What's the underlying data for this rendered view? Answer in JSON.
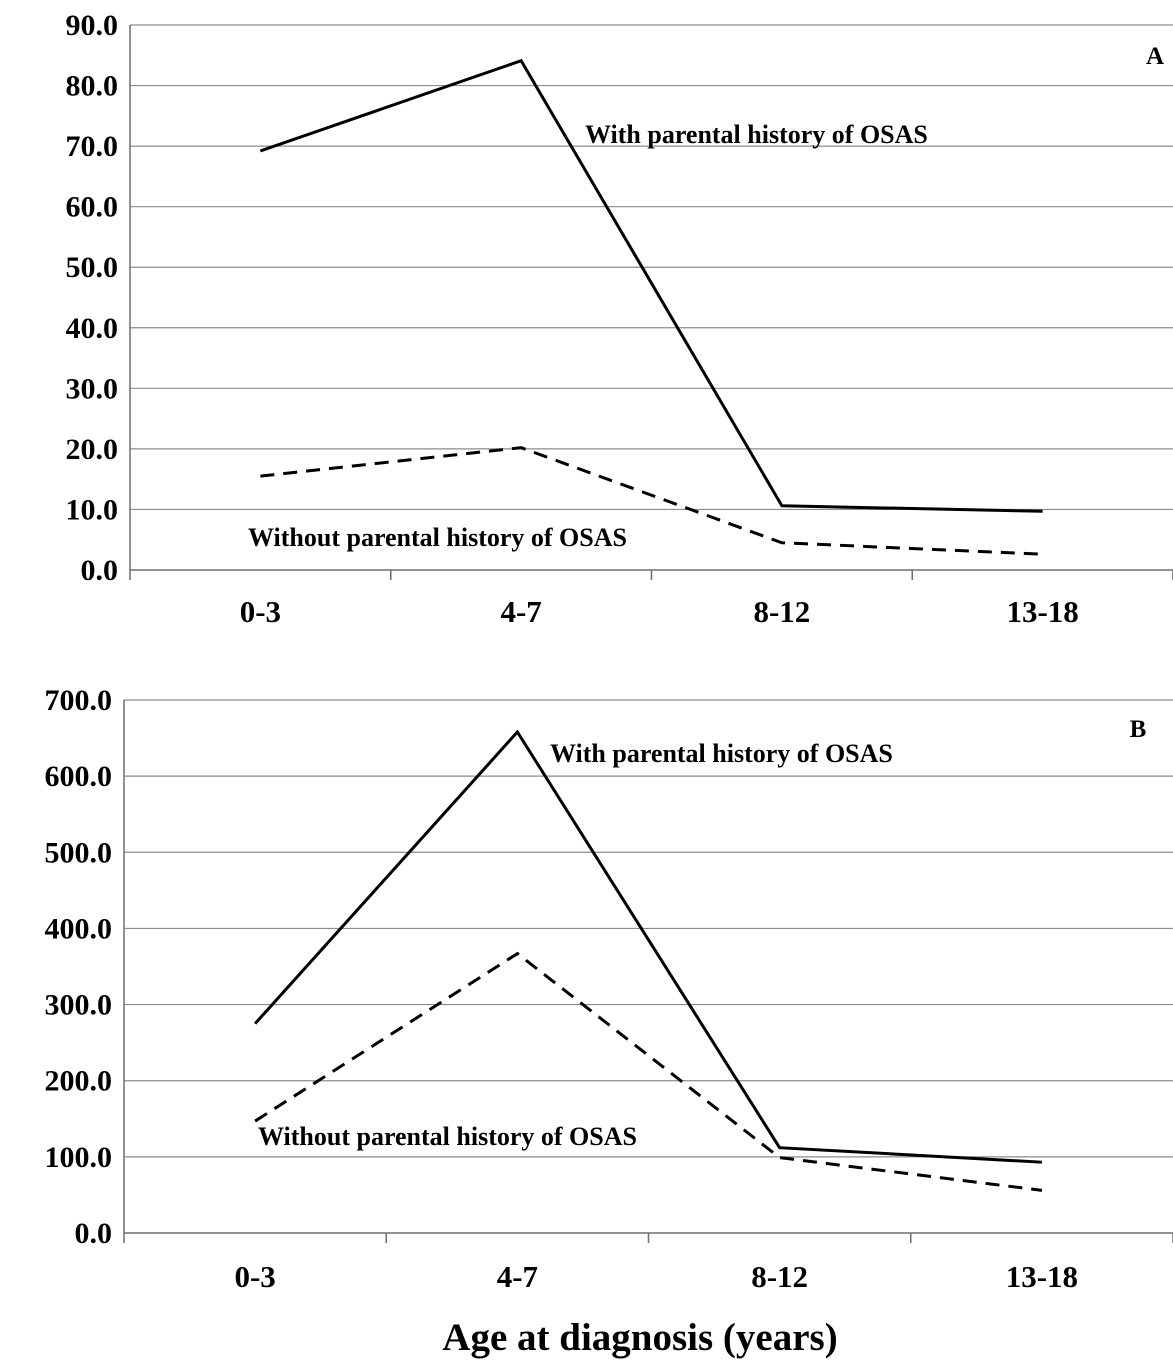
{
  "chart_data": [
    {
      "type": "line",
      "panel": "A",
      "categories": [
        "0-3",
        "4-7",
        "8-12",
        "13-18"
      ],
      "ylim": [
        0,
        90
      ],
      "yticks": [
        "0.0",
        "10.0",
        "20.0",
        "30.0",
        "40.0",
        "50.0",
        "60.0",
        "70.0",
        "80.0",
        "90.0"
      ],
      "grid": true,
      "series": [
        {
          "name": "With parental history of OSAS",
          "style": "solid",
          "values": [
            69.2,
            84.1,
            10.6,
            9.7
          ]
        },
        {
          "name": "Without parental history of OSAS",
          "style": "dashed",
          "values": [
            15.5,
            20.2,
            4.5,
            2.6
          ]
        }
      ],
      "xlabel": "",
      "ylabel": ""
    },
    {
      "type": "line",
      "panel": "B",
      "categories": [
        "0-3",
        "4-7",
        "8-12",
        "13-18"
      ],
      "ylim": [
        0,
        700
      ],
      "yticks": [
        "0.0",
        "100.0",
        "200.0",
        "300.0",
        "400.0",
        "500.0",
        "600.0",
        "700.0"
      ],
      "grid": true,
      "series": [
        {
          "name": "With parental history of OSAS",
          "style": "solid",
          "values": [
            275,
            658,
            112,
            93
          ]
        },
        {
          "name": "Without parental history of OSAS",
          "style": "dashed",
          "values": [
            147,
            367,
            99,
            56
          ]
        }
      ],
      "xlabel": "Age at diagnosis (years)",
      "ylabel": ""
    }
  ]
}
